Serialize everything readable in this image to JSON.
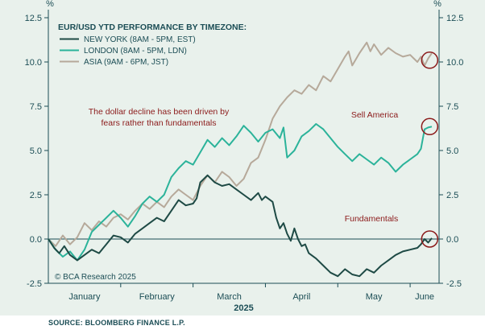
{
  "chart_data": {
    "type": "line",
    "title": "EUR/USD YTD PERFORMANCE BY TIMEZONE:",
    "y_unit_left": "%",
    "y_unit_right": "%",
    "ylim": [
      -2.5,
      12.5
    ],
    "yticks": [
      -2.5,
      0.0,
      2.5,
      5.0,
      7.5,
      10.0,
      12.5
    ],
    "ytick_labels": [
      "-2.5",
      "0.0",
      "2.5",
      "5.0",
      "7.5",
      "10.0",
      "12.5"
    ],
    "xlim": [
      0,
      5.4
    ],
    "x_month_labels": [
      "January",
      "February",
      "March",
      "April",
      "May",
      "June"
    ],
    "x_month_positions": [
      0.5,
      1.5,
      2.5,
      3.5,
      4.5,
      5.2
    ],
    "xlabel": "2025",
    "zero_line": 0.0,
    "series": [
      {
        "name": "NEW YORK (8AM - 5PM, EST)",
        "color": "#1e4a45",
        "points": [
          [
            0.0,
            0.0
          ],
          [
            0.08,
            -0.5
          ],
          [
            0.15,
            -0.8
          ],
          [
            0.22,
            -0.4
          ],
          [
            0.3,
            -0.9
          ],
          [
            0.4,
            -1.2
          ],
          [
            0.5,
            -0.9
          ],
          [
            0.6,
            -0.6
          ],
          [
            0.7,
            -0.8
          ],
          [
            0.8,
            -0.3
          ],
          [
            0.9,
            0.2
          ],
          [
            1.0,
            0.1
          ],
          [
            1.1,
            -0.2
          ],
          [
            1.2,
            0.3
          ],
          [
            1.3,
            0.6
          ],
          [
            1.4,
            0.9
          ],
          [
            1.5,
            1.2
          ],
          [
            1.6,
            1.0
          ],
          [
            1.7,
            1.6
          ],
          [
            1.8,
            2.2
          ],
          [
            1.9,
            1.9
          ],
          [
            2.0,
            2.0
          ],
          [
            2.05,
            2.3
          ],
          [
            2.1,
            3.2
          ],
          [
            2.2,
            3.6
          ],
          [
            2.3,
            3.2
          ],
          [
            2.4,
            3.0
          ],
          [
            2.5,
            3.1
          ],
          [
            2.6,
            2.8
          ],
          [
            2.7,
            2.5
          ],
          [
            2.8,
            2.2
          ],
          [
            2.9,
            2.6
          ],
          [
            2.95,
            2.2
          ],
          [
            3.0,
            2.4
          ],
          [
            3.1,
            2.1
          ],
          [
            3.15,
            1.2
          ],
          [
            3.2,
            0.6
          ],
          [
            3.25,
            0.9
          ],
          [
            3.3,
            0.3
          ],
          [
            3.35,
            -0.1
          ],
          [
            3.4,
            0.6
          ],
          [
            3.45,
            0.0
          ],
          [
            3.5,
            -0.4
          ],
          [
            3.55,
            -0.3
          ],
          [
            3.6,
            -0.8
          ],
          [
            3.7,
            -1.1
          ],
          [
            3.8,
            -1.5
          ],
          [
            3.9,
            -1.9
          ],
          [
            4.0,
            -2.1
          ],
          [
            4.1,
            -1.7
          ],
          [
            4.2,
            -2.0
          ],
          [
            4.3,
            -2.1
          ],
          [
            4.4,
            -1.7
          ],
          [
            4.5,
            -1.9
          ],
          [
            4.6,
            -1.5
          ],
          [
            4.7,
            -1.2
          ],
          [
            4.8,
            -0.9
          ],
          [
            4.9,
            -0.7
          ],
          [
            5.0,
            -0.6
          ],
          [
            5.1,
            -0.5
          ],
          [
            5.15,
            -0.3
          ],
          [
            5.2,
            0.0
          ],
          [
            5.25,
            -0.2
          ],
          [
            5.3,
            0.05
          ]
        ]
      },
      {
        "name": "LONDON (8AM - 5PM, LDN)",
        "color": "#2bb39a",
        "points": [
          [
            0.0,
            0.0
          ],
          [
            0.1,
            -0.6
          ],
          [
            0.2,
            -1.0
          ],
          [
            0.3,
            -0.7
          ],
          [
            0.4,
            -1.2
          ],
          [
            0.5,
            -0.6
          ],
          [
            0.6,
            0.4
          ],
          [
            0.7,
            0.8
          ],
          [
            0.8,
            1.2
          ],
          [
            0.9,
            1.6
          ],
          [
            1.0,
            1.2
          ],
          [
            1.1,
            0.7
          ],
          [
            1.2,
            1.3
          ],
          [
            1.3,
            2.0
          ],
          [
            1.4,
            2.4
          ],
          [
            1.5,
            2.1
          ],
          [
            1.6,
            2.5
          ],
          [
            1.7,
            3.5
          ],
          [
            1.8,
            4.0
          ],
          [
            1.9,
            4.4
          ],
          [
            2.0,
            4.2
          ],
          [
            2.1,
            4.9
          ],
          [
            2.2,
            5.6
          ],
          [
            2.3,
            5.2
          ],
          [
            2.4,
            5.7
          ],
          [
            2.5,
            5.3
          ],
          [
            2.6,
            5.8
          ],
          [
            2.7,
            6.4
          ],
          [
            2.8,
            6.0
          ],
          [
            2.9,
            5.5
          ],
          [
            3.0,
            6.0
          ],
          [
            3.1,
            6.2
          ],
          [
            3.2,
            5.7
          ],
          [
            3.25,
            6.3
          ],
          [
            3.3,
            4.6
          ],
          [
            3.4,
            5.0
          ],
          [
            3.5,
            5.8
          ],
          [
            3.6,
            6.1
          ],
          [
            3.7,
            6.5
          ],
          [
            3.8,
            6.2
          ],
          [
            3.9,
            5.7
          ],
          [
            4.0,
            5.2
          ],
          [
            4.1,
            4.8
          ],
          [
            4.2,
            4.4
          ],
          [
            4.3,
            4.8
          ],
          [
            4.4,
            4.5
          ],
          [
            4.5,
            4.2
          ],
          [
            4.6,
            4.6
          ],
          [
            4.7,
            4.3
          ],
          [
            4.8,
            3.8
          ],
          [
            4.9,
            4.2
          ],
          [
            5.0,
            4.5
          ],
          [
            5.1,
            4.8
          ],
          [
            5.15,
            5.1
          ],
          [
            5.2,
            6.2
          ],
          [
            5.25,
            6.3
          ],
          [
            5.3,
            6.35
          ]
        ]
      },
      {
        "name": "ASIA (9AM - 6PM, JST)",
        "color": "#b6a99a",
        "points": [
          [
            0.0,
            0.0
          ],
          [
            0.1,
            -0.4
          ],
          [
            0.2,
            0.2
          ],
          [
            0.3,
            -0.3
          ],
          [
            0.4,
            0.1
          ],
          [
            0.5,
            0.9
          ],
          [
            0.6,
            0.5
          ],
          [
            0.7,
            1.0
          ],
          [
            0.8,
            0.7
          ],
          [
            0.9,
            1.2
          ],
          [
            1.0,
            1.4
          ],
          [
            1.1,
            1.1
          ],
          [
            1.2,
            1.6
          ],
          [
            1.3,
            2.0
          ],
          [
            1.4,
            1.7
          ],
          [
            1.5,
            2.1
          ],
          [
            1.6,
            1.8
          ],
          [
            1.7,
            2.4
          ],
          [
            1.8,
            2.8
          ],
          [
            1.9,
            2.5
          ],
          [
            2.0,
            2.2
          ],
          [
            2.1,
            3.0
          ],
          [
            2.2,
            3.6
          ],
          [
            2.3,
            3.2
          ],
          [
            2.4,
            3.8
          ],
          [
            2.5,
            3.5
          ],
          [
            2.6,
            3.0
          ],
          [
            2.7,
            3.4
          ],
          [
            2.8,
            4.3
          ],
          [
            2.9,
            4.6
          ],
          [
            3.0,
            5.6
          ],
          [
            3.1,
            6.8
          ],
          [
            3.2,
            7.5
          ],
          [
            3.3,
            8.0
          ],
          [
            3.4,
            8.4
          ],
          [
            3.5,
            8.2
          ],
          [
            3.6,
            8.7
          ],
          [
            3.7,
            8.4
          ],
          [
            3.8,
            9.2
          ],
          [
            3.9,
            8.9
          ],
          [
            4.0,
            9.6
          ],
          [
            4.1,
            10.3
          ],
          [
            4.15,
            10.6
          ],
          [
            4.2,
            9.8
          ],
          [
            4.3,
            10.5
          ],
          [
            4.4,
            11.1
          ],
          [
            4.45,
            10.6
          ],
          [
            4.5,
            11.0
          ],
          [
            4.6,
            10.4
          ],
          [
            4.7,
            10.8
          ],
          [
            4.8,
            10.5
          ],
          [
            4.9,
            10.3
          ],
          [
            5.0,
            10.4
          ],
          [
            5.05,
            10.2
          ],
          [
            5.1,
            10.0
          ],
          [
            5.15,
            10.3
          ],
          [
            5.2,
            9.8
          ],
          [
            5.25,
            10.2
          ],
          [
            5.3,
            10.5
          ]
        ]
      }
    ],
    "annotations": [
      {
        "text_lines": [
          "The dollar decline has been driven by",
          "fears rather than fundamentals"
        ],
        "color": "#8b1a1a"
      },
      {
        "text_lines": [
          "Sell America"
        ],
        "color": "#8b1a1a"
      },
      {
        "text_lines": [
          "Fundamentals"
        ],
        "color": "#8b1a1a"
      }
    ],
    "highlight_circles": [
      {
        "x": 5.27,
        "y": 10.1
      },
      {
        "x": 5.27,
        "y": 6.35
      },
      {
        "x": 5.27,
        "y": 0.0
      }
    ],
    "copyright": "© BCA Research 2025",
    "source": "SOURCE: BLOOMBERG FINANCE L.P."
  },
  "colors": {
    "axis": "#1b4d55",
    "panel_background": "#e9f1ec",
    "annotation": "#8b1a1a"
  }
}
